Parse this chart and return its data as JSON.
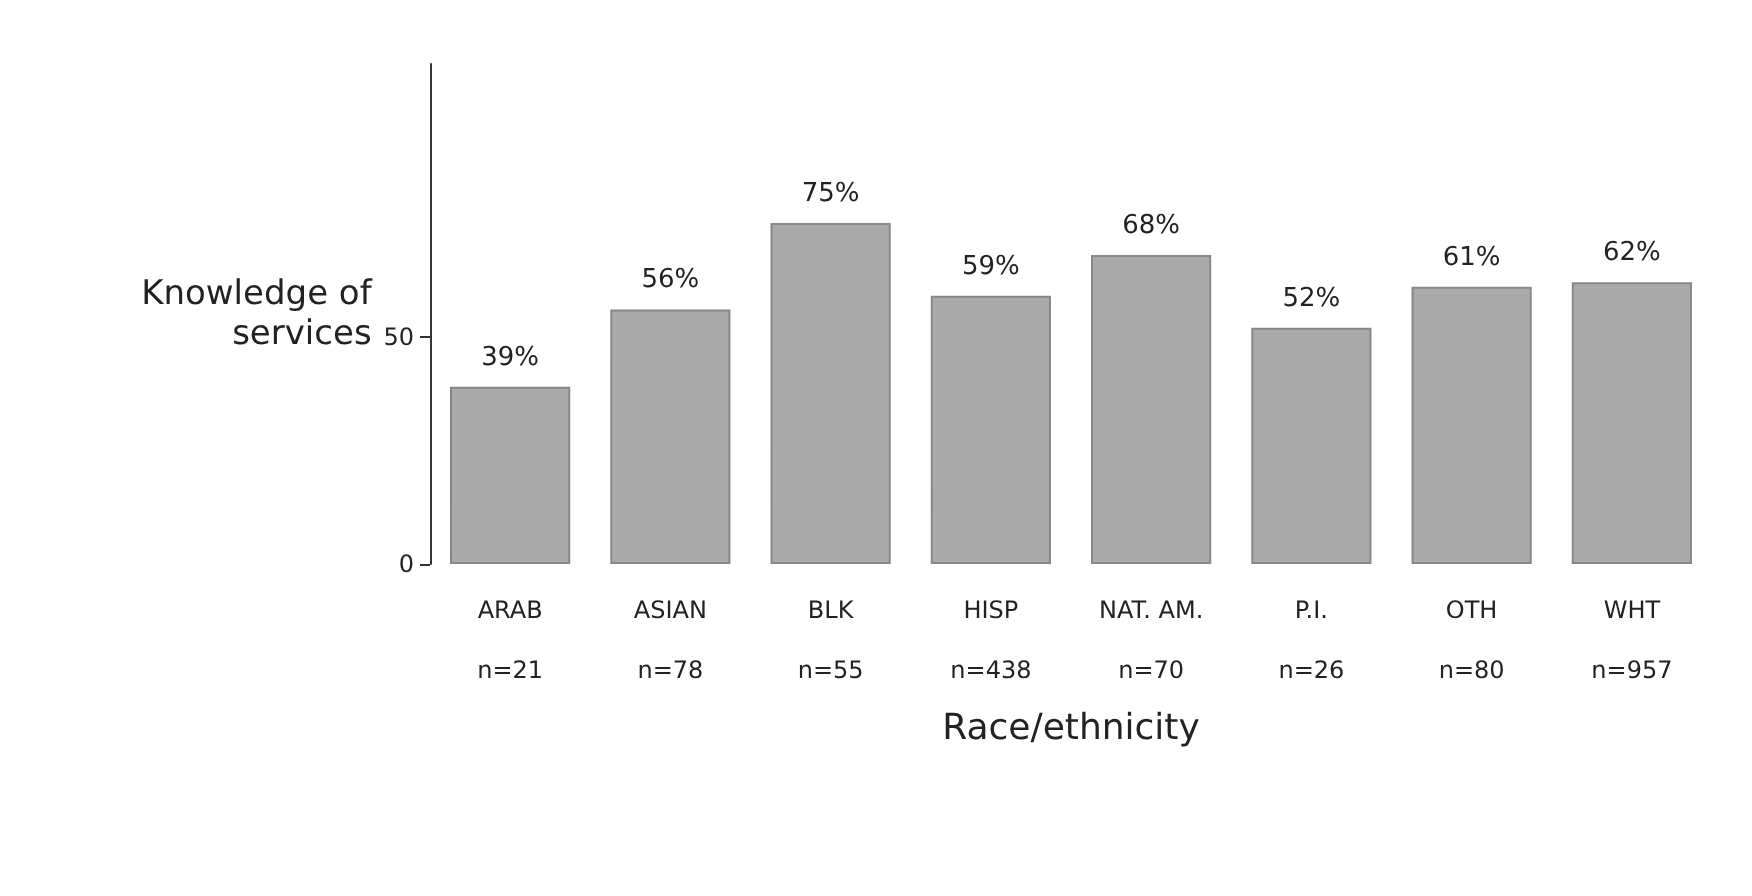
{
  "chart_data": {
    "type": "bar",
    "ylabel": "Knowledge of services",
    "xlabel": "Race/ethnicity",
    "categories": [
      "ARAB\nn=21",
      "ASIAN\nn=78",
      "BLK\nn=55",
      "HISP\nn=438",
      "NAT. AM.\nn=70",
      "P.I.\nn=26",
      "OTH\nn=80",
      "WHT\nn=957"
    ],
    "values": [
      39,
      56,
      75,
      59,
      68,
      52,
      61,
      62
    ],
    "value_labels": [
      "39%",
      "56%",
      "75%",
      "59%",
      "68%",
      "52%",
      "61%",
      "62%"
    ],
    "color": "#aaaaaa",
    "ylim": [
      0,
      110
    ],
    "yticks": [
      0,
      50
    ],
    "grid": false
  }
}
